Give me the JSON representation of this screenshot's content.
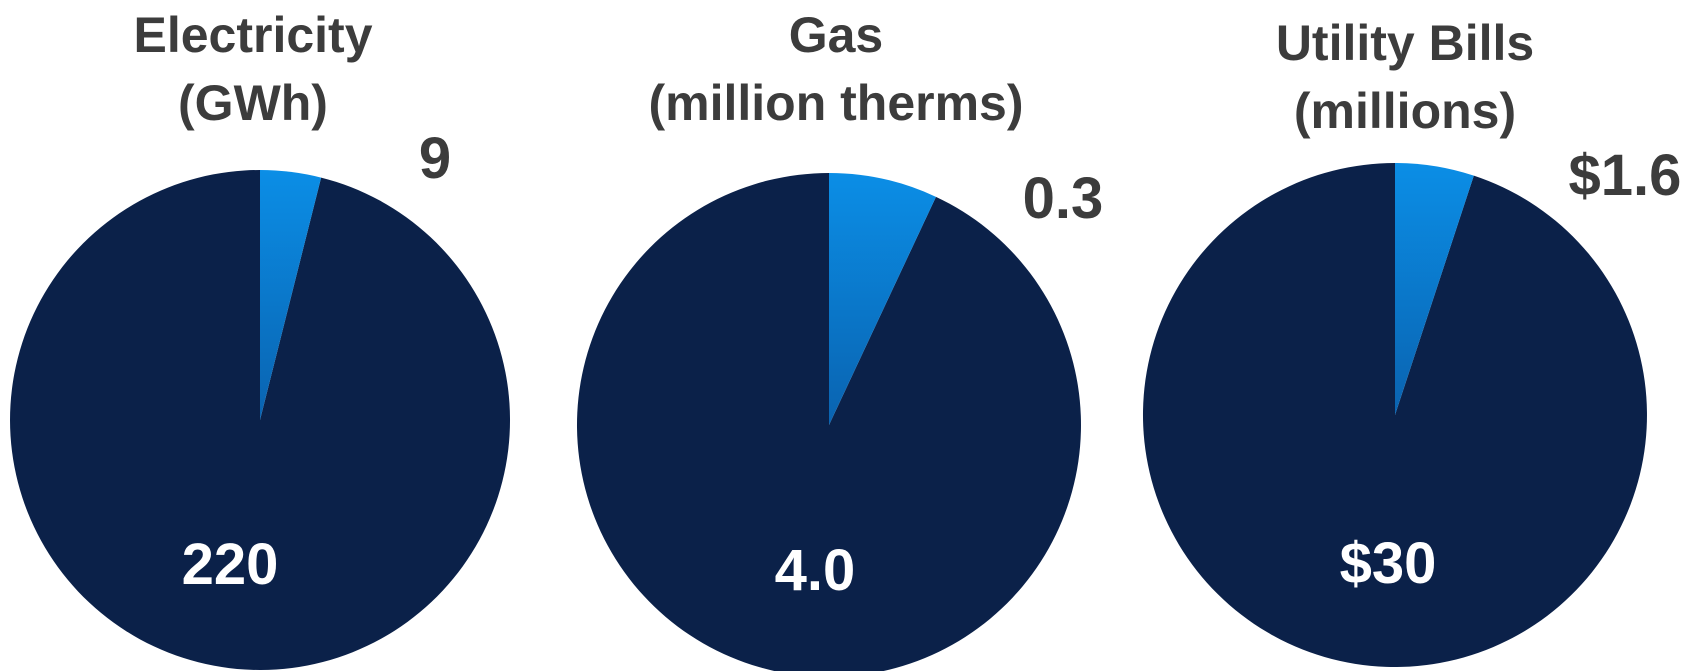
{
  "chart_data": [
    {
      "type": "pie",
      "title": [
        "Electricity",
        "(GWh)"
      ],
      "slices": [
        {
          "label": "220",
          "value": 220,
          "color": "#0b2149"
        },
        {
          "label": "9",
          "value": 9,
          "color": "#0b8ee6"
        }
      ],
      "legend": "none"
    },
    {
      "type": "pie",
      "title": [
        "Gas",
        "(million therms)"
      ],
      "slices": [
        {
          "label": "4.0",
          "value": 4.0,
          "color": "#0b2149"
        },
        {
          "label": "0.3",
          "value": 0.3,
          "color": "#0b8ee6"
        }
      ],
      "legend": "none"
    },
    {
      "type": "pie",
      "title": [
        "Utility Bills",
        "(millions)"
      ],
      "slices": [
        {
          "label": "$30",
          "value": 30,
          "color": "#0b2149"
        },
        {
          "label": "$1.6",
          "value": 1.6,
          "color": "#0b8ee6"
        }
      ],
      "legend": "none"
    }
  ]
}
